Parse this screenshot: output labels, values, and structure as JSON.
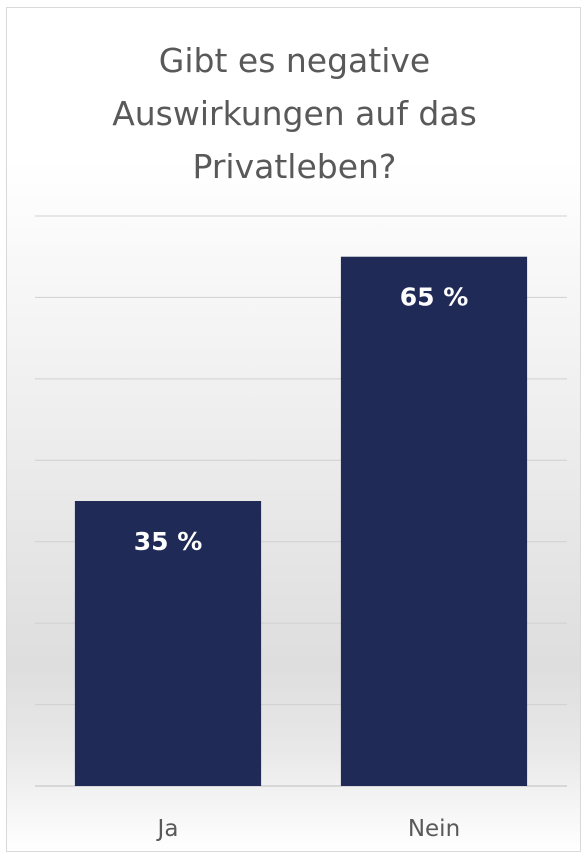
{
  "chart_data": {
    "type": "bar",
    "title": "Gibt es negative\nAuswirkungen auf das\nPrivatleben?",
    "categories": [
      "Ja",
      "Nein"
    ],
    "values": [
      35,
      65
    ],
    "data_labels": [
      "35 %",
      "65 %"
    ],
    "xlabel": "",
    "ylabel": "",
    "ylim": [
      0,
      70
    ],
    "grid": true,
    "legend": "none",
    "colors": {
      "bar": "#1f2a57",
      "title": "#595959",
      "labels": "#ffffff",
      "axis_text": "#595959"
    }
  }
}
